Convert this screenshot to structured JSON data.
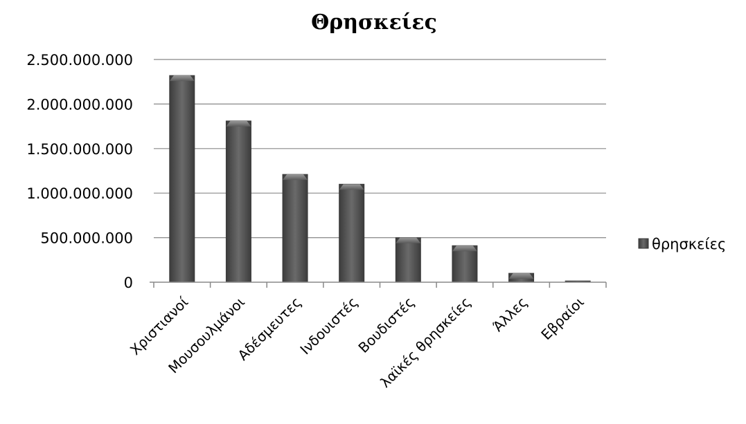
{
  "chart_data": {
    "type": "bar",
    "title": "Θρησκείες",
    "categories": [
      "Χριστιανοί",
      "Μουσουλμάνοι",
      "Αδέσμευτες",
      "Ινδουιστές",
      "Βουδιστές",
      "λαϊκές θρησκείες",
      "Άλλες",
      "Εβραίοι"
    ],
    "series": [
      {
        "name": "θρησκείες",
        "values": [
          2320000000,
          1810000000,
          1210000000,
          1100000000,
          500000000,
          410000000,
          100000000,
          14000000
        ]
      }
    ],
    "ylim": [
      0,
      2500000000
    ],
    "yticks": [
      0,
      500000000,
      1000000000,
      1500000000,
      2000000000,
      2500000000
    ],
    "ytick_labels": [
      "0",
      "500.000.000",
      "1.000.000.000",
      "1.500.000.000",
      "2.000.000.000",
      "2.500.000.000"
    ],
    "grid": true,
    "legend_position": "right",
    "colors": {
      "bar": "#4f4f4f",
      "bar_edge": "#3a3a3a",
      "grid": "#888888",
      "axis": "#888888"
    }
  }
}
